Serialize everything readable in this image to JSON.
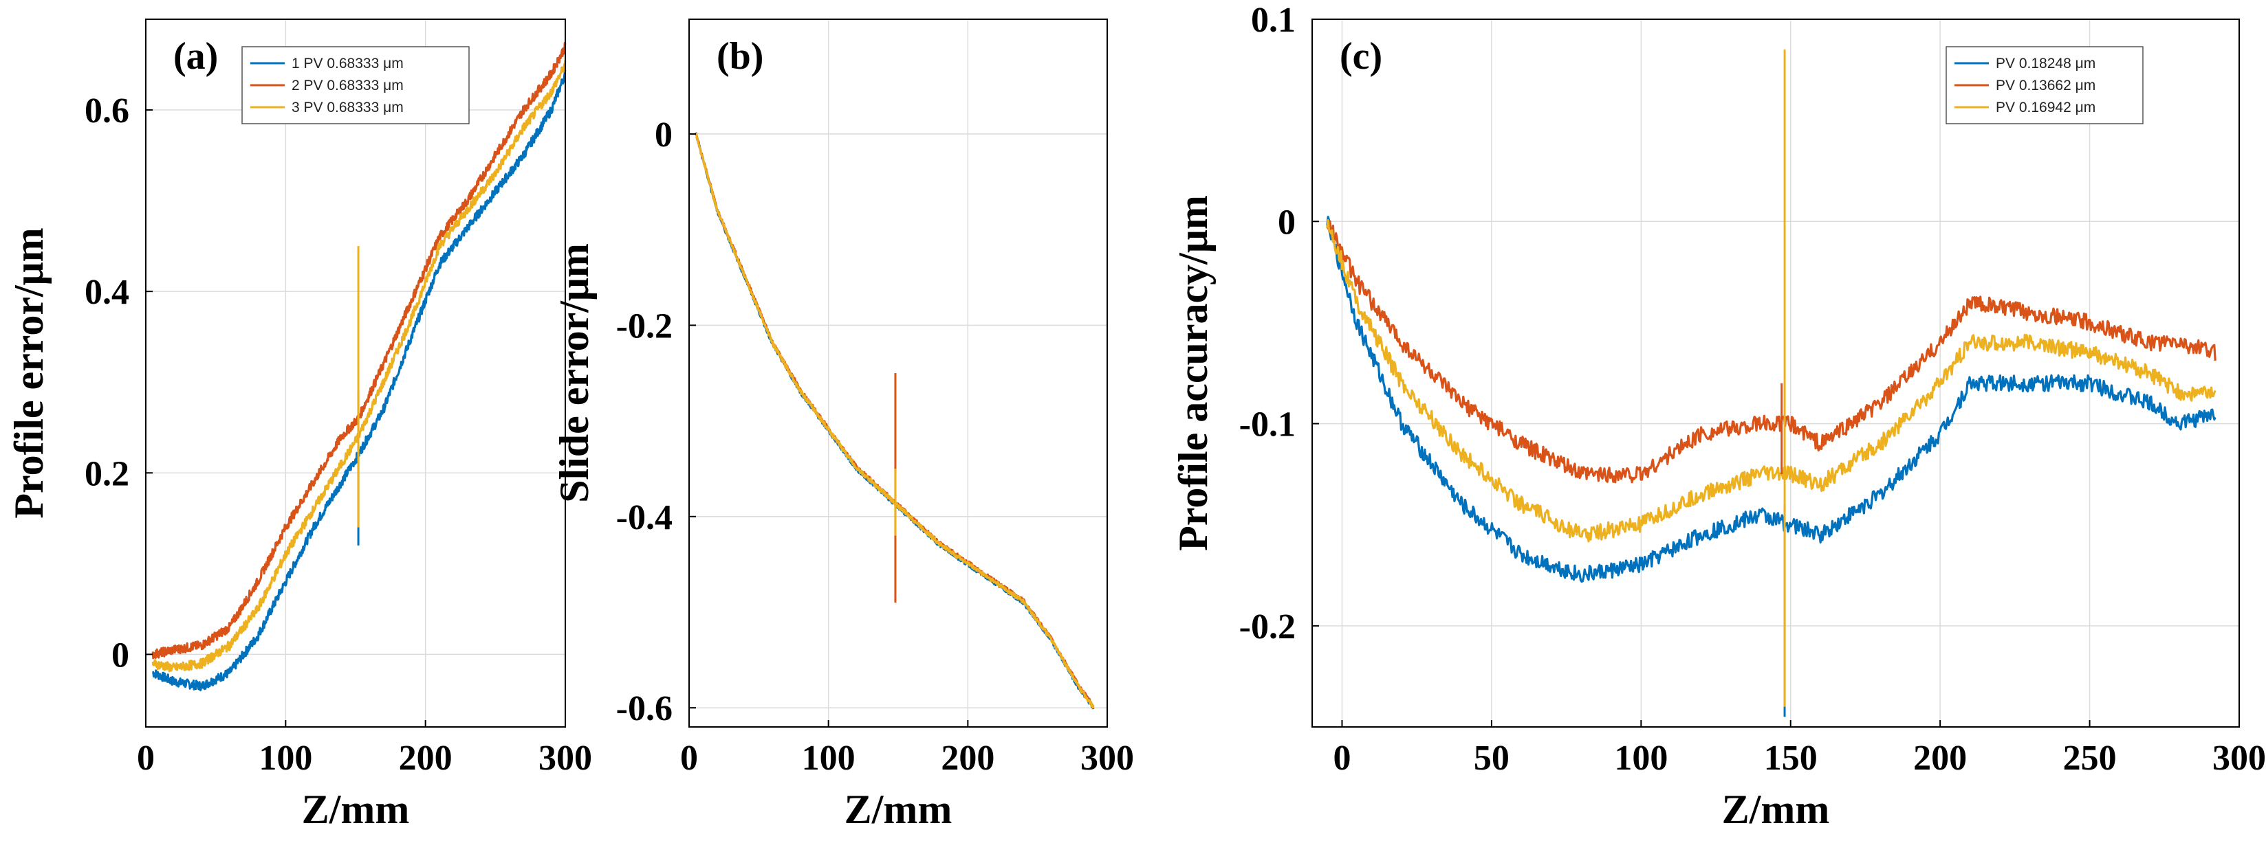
{
  "colors": {
    "s1": "#0072BD",
    "s2": "#D95319",
    "s3": "#EDB120",
    "grid": "#dcdcdc",
    "axis": "#000000"
  },
  "chart_data": [
    {
      "type": "line",
      "panel_label": "(a)",
      "xlabel": "Z/mm",
      "ylabel": "Profile error/μm",
      "xlim": [
        0,
        300
      ],
      "ylim": [
        -0.08,
        0.7
      ],
      "xticks": [
        0,
        100,
        200,
        300
      ],
      "yticks": [
        0,
        0.2,
        0.4,
        0.6
      ],
      "ytick_labels": [
        "0",
        "0.2",
        "0.4",
        "0.6"
      ],
      "grid": true,
      "legend_position": "top-right",
      "x": [
        5,
        20,
        40,
        60,
        80,
        100,
        120,
        140,
        152,
        170,
        190,
        210,
        230,
        250,
        270,
        290,
        300
      ],
      "series": [
        {
          "name": "1 PV 0.68333 μm",
          "color": "#0072BD",
          "noise": 0.005,
          "spike": {
            "x": 152,
            "low": 0.12,
            "high": 0.23
          },
          "values": [
            -0.02,
            -0.03,
            -0.035,
            -0.02,
            0.02,
            0.08,
            0.14,
            0.19,
            0.22,
            0.27,
            0.35,
            0.43,
            0.47,
            0.51,
            0.55,
            0.6,
            0.64
          ]
        },
        {
          "name": "2 PV 0.68333 μm",
          "color": "#D95319",
          "noise": 0.005,
          "spike": {
            "x": 152,
            "low": 0.24,
            "high": 0.29
          },
          "values": [
            0,
            0.005,
            0.01,
            0.03,
            0.08,
            0.14,
            0.19,
            0.24,
            0.26,
            0.32,
            0.39,
            0.46,
            0.5,
            0.55,
            0.6,
            0.64,
            0.67
          ]
        },
        {
          "name": "3 PV 0.68333 μm",
          "color": "#EDB120",
          "noise": 0.005,
          "spike": {
            "x": 152,
            "low": 0.14,
            "high": 0.45
          },
          "values": [
            -0.01,
            -0.015,
            -0.01,
            0.01,
            0.05,
            0.11,
            0.16,
            0.21,
            0.24,
            0.3,
            0.37,
            0.45,
            0.49,
            0.53,
            0.58,
            0.62,
            0.65
          ]
        }
      ]
    },
    {
      "type": "line",
      "panel_label": "(b)",
      "xlabel": "Z/mm",
      "ylabel": "Slide error/μm",
      "xlim": [
        0,
        300
      ],
      "ylim": [
        -0.62,
        0.12
      ],
      "xticks": [
        0,
        100,
        200,
        300
      ],
      "yticks": [
        -0.6,
        -0.4,
        -0.2,
        0
      ],
      "ytick_labels": [
        "-0.6",
        "-0.4",
        "-0.2",
        "0"
      ],
      "grid": true,
      "x": [
        5,
        20,
        40,
        60,
        80,
        100,
        120,
        150,
        180,
        210,
        240,
        260,
        280,
        290
      ],
      "series": [
        {
          "color": "#0072BD",
          "noise": 0.002,
          "spike": null,
          "values": [
            0.0,
            -0.08,
            -0.15,
            -0.22,
            -0.27,
            -0.31,
            -0.35,
            -0.39,
            -0.43,
            -0.46,
            -0.49,
            -0.53,
            -0.58,
            -0.6
          ]
        },
        {
          "color": "#D95319",
          "noise": 0.002,
          "spike": {
            "x": 148,
            "low": -0.49,
            "high": -0.25
          },
          "values": [
            0.0,
            -0.078,
            -0.148,
            -0.218,
            -0.268,
            -0.308,
            -0.348,
            -0.388,
            -0.428,
            -0.458,
            -0.488,
            -0.528,
            -0.578,
            -0.598
          ]
        },
        {
          "color": "#EDB120",
          "noise": 0.002,
          "spike": {
            "x": 148,
            "low": -0.42,
            "high": -0.35
          },
          "values": [
            0.0,
            -0.079,
            -0.149,
            -0.219,
            -0.269,
            -0.309,
            -0.349,
            -0.389,
            -0.429,
            -0.459,
            -0.489,
            -0.529,
            -0.579,
            -0.599
          ]
        }
      ]
    },
    {
      "type": "line",
      "panel_label": "(c)",
      "xlabel": "Z/mm",
      "ylabel": "Profile accuracy/μm",
      "xlim": [
        -10,
        300
      ],
      "ylim": [
        -0.25,
        0.1
      ],
      "xticks": [
        0,
        50,
        100,
        150,
        200,
        250,
        300
      ],
      "yticks": [
        -0.2,
        -0.1,
        0,
        0.1
      ],
      "ytick_labels": [
        "-0.2",
        "-0.1",
        "0",
        "0.1"
      ],
      "grid": true,
      "legend_position": "top-right",
      "x": [
        -5,
        5,
        20,
        40,
        60,
        80,
        100,
        120,
        140,
        150,
        160,
        180,
        200,
        210,
        230,
        250,
        270,
        280,
        292
      ],
      "series": [
        {
          "name": "PV 0.18248 μm",
          "color": "#0072BD",
          "noise": 0.004,
          "spike": {
            "x": 148,
            "low": -0.245,
            "high": -0.14
          },
          "values": [
            0,
            -0.05,
            -0.1,
            -0.14,
            -0.165,
            -0.175,
            -0.17,
            -0.155,
            -0.145,
            -0.15,
            -0.155,
            -0.135,
            -0.105,
            -0.08,
            -0.08,
            -0.08,
            -0.09,
            -0.1,
            -0.095
          ]
        },
        {
          "name": "PV 0.13662 μm",
          "color": "#D95319",
          "noise": 0.004,
          "spike": {
            "x": 147,
            "low": -0.125,
            "high": -0.08
          },
          "values": [
            0,
            -0.03,
            -0.06,
            -0.09,
            -0.11,
            -0.125,
            -0.125,
            -0.105,
            -0.1,
            -0.1,
            -0.11,
            -0.09,
            -0.06,
            -0.04,
            -0.045,
            -0.05,
            -0.06,
            -0.06,
            -0.065
          ]
        },
        {
          "name": "PV 0.16942 μm",
          "color": "#EDB120",
          "noise": 0.004,
          "spike": {
            "x": 148,
            "low": -0.24,
            "high": 0.085
          },
          "values": [
            0,
            -0.04,
            -0.08,
            -0.115,
            -0.14,
            -0.155,
            -0.15,
            -0.135,
            -0.125,
            -0.125,
            -0.13,
            -0.11,
            -0.08,
            -0.06,
            -0.06,
            -0.065,
            -0.075,
            -0.085,
            -0.085
          ]
        }
      ]
    }
  ]
}
